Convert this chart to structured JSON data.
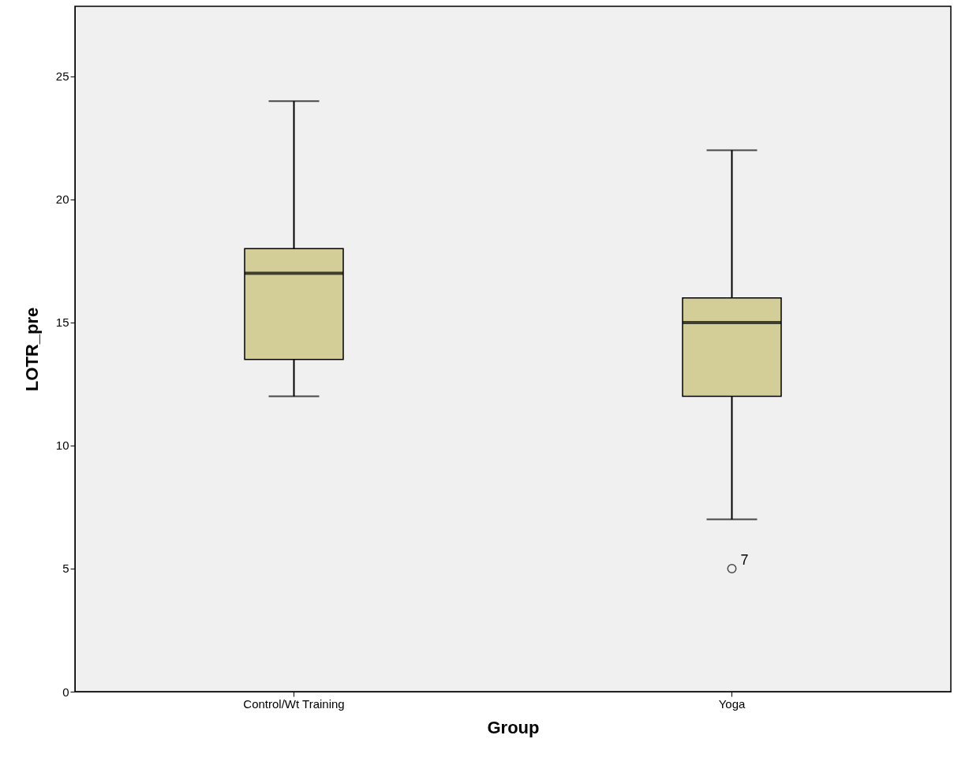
{
  "chart_data": {
    "type": "box",
    "xlabel": "Group",
    "ylabel": "LOTR_pre",
    "categories": [
      "Control/Wt Training",
      "Yoga"
    ],
    "series": [
      {
        "color": "#d3ce98",
        "boxes": [
          {
            "low": 12,
            "q1": 13.5,
            "median": 17,
            "q3": 18,
            "high": 24
          },
          {
            "low": 7,
            "q1": 12,
            "median": 15,
            "q3": 16,
            "high": 22,
            "outliers": [
              5
            ]
          }
        ]
      }
    ],
    "ylim": [
      0,
      27.85
    ],
    "yticks": [
      0,
      5,
      10,
      15,
      20,
      25
    ],
    "annotations": [
      "7"
    ]
  }
}
